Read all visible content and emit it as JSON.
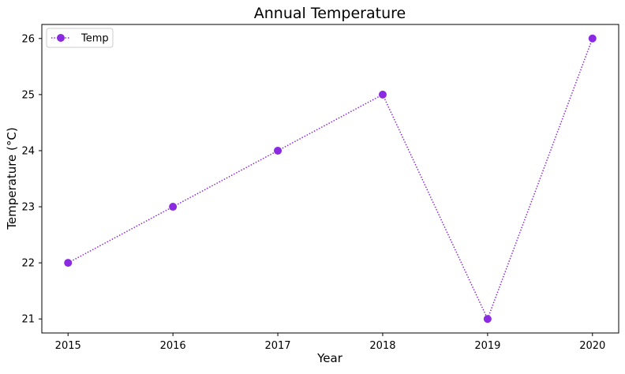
{
  "chart_data": {
    "type": "line",
    "title": "Annual Temperature",
    "xlabel": "Year",
    "ylabel": "Temperature (°C)",
    "x": [
      2015,
      2016,
      2017,
      2018,
      2019,
      2020
    ],
    "xlim": [
      2014.75,
      2020.25
    ],
    "ylim": [
      20.75,
      26.25
    ],
    "xticks": [
      2015,
      2016,
      2017,
      2018,
      2019,
      2020
    ],
    "yticks": [
      21,
      22,
      23,
      24,
      25,
      26
    ],
    "grid": false,
    "legend_position": "top-left",
    "series": [
      {
        "name": "Temp",
        "values": [
          22,
          23,
          24,
          25,
          21,
          26
        ],
        "color": "#8a2be2",
        "line_style": "dotted",
        "marker": "circle"
      }
    ]
  }
}
